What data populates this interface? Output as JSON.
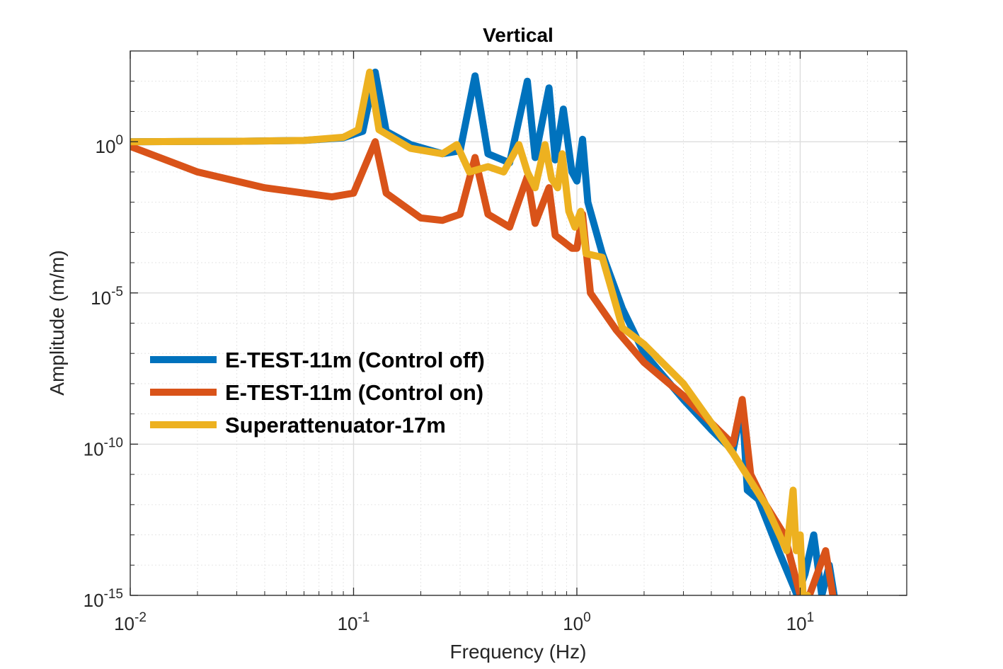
{
  "chart_data": {
    "type": "line",
    "title": "Vertical",
    "xlabel": "Frequency (Hz)",
    "ylabel": "Amplitude (m/m)",
    "xscale": "log",
    "yscale": "log",
    "xlim": [
      0.01,
      30
    ],
    "ylim": [
      1e-15,
      1000
    ],
    "grid": true,
    "legend_position": "center-left",
    "x_ticks": [
      {
        "value": 0.01,
        "base": "10",
        "exp": "-2"
      },
      {
        "value": 0.1,
        "base": "10",
        "exp": "-1"
      },
      {
        "value": 1,
        "base": "10",
        "exp": "0"
      },
      {
        "value": 10,
        "base": "10",
        "exp": "1"
      }
    ],
    "y_ticks": [
      {
        "value": 1,
        "base": "10",
        "exp": "0"
      },
      {
        "value": 1e-05,
        "base": "10",
        "exp": "-5"
      },
      {
        "value": 1e-10,
        "base": "10",
        "exp": "-10"
      },
      {
        "value": 1e-15,
        "base": "10",
        "exp": "-15"
      }
    ],
    "series": [
      {
        "name": "E-TEST-11m (Control off)",
        "color": "#0072BD",
        "x": [
          0.01,
          0.03,
          0.06,
          0.09,
          0.11,
          0.125,
          0.14,
          0.18,
          0.25,
          0.3,
          0.35,
          0.4,
          0.5,
          0.6,
          0.65,
          0.75,
          0.8,
          0.87,
          0.95,
          1.0,
          1.06,
          1.12,
          1.3,
          1.6,
          2.0,
          3.0,
          4.0,
          5.0,
          5.5,
          5.8,
          6.5,
          8.0,
          9.7,
          10.5,
          11.5,
          12.5,
          13.5,
          14.2
        ],
        "values": [
          1,
          1.03,
          1.1,
          1.35,
          2.2,
          200,
          2.2,
          0.8,
          0.4,
          0.5,
          150,
          0.4,
          0.2,
          100,
          0.3,
          60,
          0.25,
          12,
          0.1,
          0.05,
          1.2,
          0.01,
          0.0002,
          3e-06,
          1e-07,
          3e-09,
          3e-10,
          6e-11,
          2e-09,
          3e-12,
          1.5e-12,
          3e-14,
          1e-15,
          5e-15,
          1e-13,
          1e-15,
          1e-14,
          1e-15
        ]
      },
      {
        "name": "E-TEST-11m (Control on)",
        "color": "#D95319",
        "x": [
          0.01,
          0.02,
          0.04,
          0.08,
          0.1,
          0.125,
          0.14,
          0.2,
          0.25,
          0.3,
          0.35,
          0.4,
          0.5,
          0.6,
          0.65,
          0.75,
          0.8,
          0.87,
          0.95,
          1.0,
          1.06,
          1.15,
          1.5,
          2.0,
          3.0,
          5.0,
          5.5,
          6.0,
          7.0,
          8.5,
          10.0,
          11.0,
          13.0,
          14.0
        ],
        "values": [
          0.7,
          0.1,
          0.03,
          0.015,
          0.02,
          1,
          0.02,
          0.003,
          0.0025,
          0.004,
          0.3,
          0.004,
          0.0015,
          0.07,
          0.002,
          0.03,
          0.0008,
          0.0005,
          0.0003,
          0.0003,
          0.004,
          1e-05,
          6e-07,
          5e-08,
          4e-09,
          1e-10,
          3e-09,
          1e-11,
          1e-12,
          1e-13,
          1e-15,
          1e-15,
          3e-14,
          1e-15
        ]
      },
      {
        "name": "Superattenuator-17m",
        "color": "#EDB120",
        "x": [
          0.01,
          0.03,
          0.06,
          0.09,
          0.105,
          0.118,
          0.13,
          0.18,
          0.25,
          0.29,
          0.33,
          0.4,
          0.47,
          0.55,
          0.6,
          0.65,
          0.72,
          0.77,
          0.82,
          0.86,
          0.92,
          0.98,
          1.04,
          1.1,
          1.3,
          1.6,
          2.0,
          3.0,
          5.0,
          7.0,
          8.7,
          9.3,
          9.6,
          10.0,
          10.3,
          10.8
        ],
        "values": [
          1,
          1.03,
          1.1,
          1.4,
          2.5,
          200,
          2.5,
          0.6,
          0.4,
          0.8,
          0.1,
          0.15,
          0.1,
          0.8,
          0.1,
          0.03,
          0.8,
          0.06,
          0.03,
          0.4,
          0.005,
          0.0015,
          0.005,
          0.0002,
          0.00015,
          7e-07,
          2e-07,
          1e-08,
          5e-11,
          1e-12,
          3e-14,
          3e-12,
          3e-14,
          1e-13,
          1e-15,
          1e-15
        ]
      }
    ]
  }
}
